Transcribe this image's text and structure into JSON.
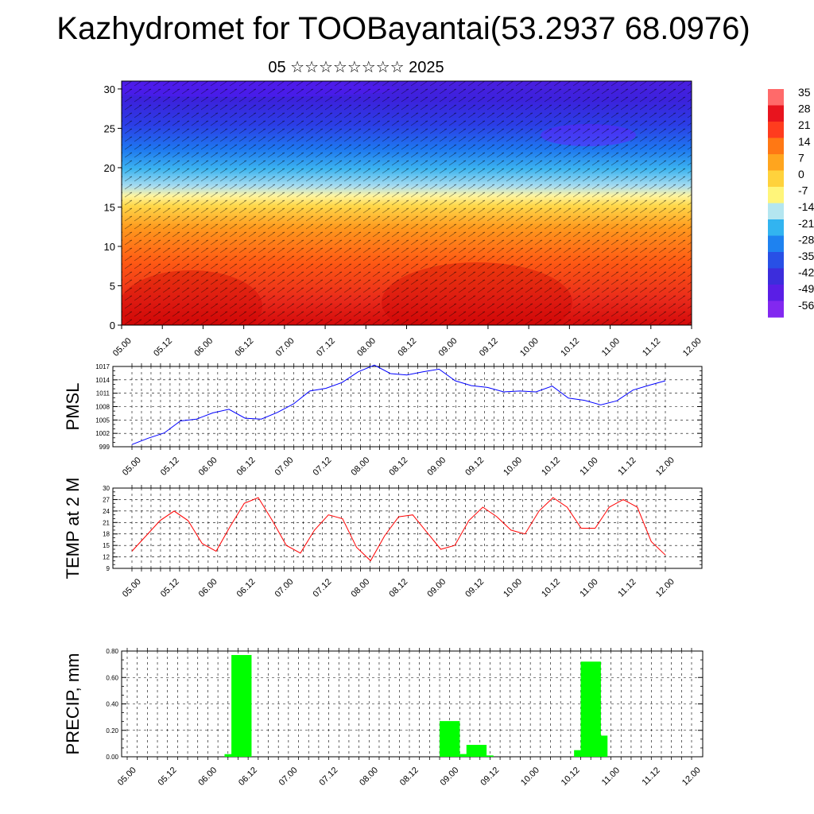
{
  "header": {
    "title": "Kazhydromet for TOOBayantai(53.2937 68.0976)",
    "subtitle": "05 ☆☆☆☆☆☆☆☆ 2025"
  },
  "colors": {
    "pmsl_line": "#0000ff",
    "temp_line": "#ff0000",
    "precip_bar": "#00ff00",
    "grid": "#000000"
  },
  "chart_data": [
    {
      "type": "heatmap",
      "title": "",
      "ylabel": "",
      "ylim": [
        0,
        31
      ],
      "yticks": [
        0,
        5,
        10,
        15,
        20,
        25,
        30
      ],
      "x_ticklabels": [
        "05.00",
        "05.12",
        "06.00",
        "06.12",
        "07.00",
        "07.12",
        "08.00",
        "08.12",
        "09.00",
        "09.12",
        "10.00",
        "10.12",
        "11.00",
        "11.12",
        "12.00"
      ],
      "overlay": "wind vectors",
      "colorbar": {
        "labels": [
          "35",
          "28",
          "21",
          "14",
          "7",
          "0",
          "-7",
          "-14",
          "-21",
          "-28",
          "-35",
          "-42",
          "-49",
          "-56"
        ],
        "colors": [
          "#ff6a6a",
          "#e8141e",
          "#ff3c1e",
          "#ff7814",
          "#ffa51e",
          "#ffd23c",
          "#fff57a",
          "#b4e6f0",
          "#32b4f0",
          "#1e82f0",
          "#2850e6",
          "#3c2ddc",
          "#5a1ee6",
          "#8228f0"
        ]
      }
    },
    {
      "type": "line",
      "ylabel": "PMSL",
      "ylim": [
        999,
        1017
      ],
      "yticks": [
        999,
        1002,
        1005,
        1008,
        1011,
        1014,
        1017
      ],
      "x_ticklabels": [
        "05.00",
        "05.12",
        "06.00",
        "06.12",
        "07.00",
        "07.12",
        "08.00",
        "08.12",
        "09.00",
        "09.12",
        "10.00",
        "10.12",
        "11.00",
        "11.12",
        "12.00"
      ],
      "series": [
        {
          "values": [
            999.5,
            1000.9,
            1002.1,
            1004.8,
            1005.2,
            1006.6,
            1007.4,
            1005.4,
            1005.2,
            1006.7,
            1008.6,
            1011.5,
            1012.1,
            1013.4,
            1015.8,
            1017.3,
            1015.4,
            1015.1,
            1015.8,
            1016.4,
            1013.8,
            1012.7,
            1012.3,
            1011.3,
            1011.5,
            1011.3,
            1012.6,
            1009.9,
            1009.4,
            1008.4,
            1009.3,
            1011.7,
            1012.8,
            1013.8
          ]
        }
      ]
    },
    {
      "type": "line",
      "ylabel": "TEMP at 2 M",
      "ylim": [
        9,
        30
      ],
      "yticks": [
        9,
        12,
        15,
        18,
        21,
        24,
        27,
        30
      ],
      "x_ticklabels": [
        "05.00",
        "05.12",
        "06.00",
        "06.12",
        "07.00",
        "07.12",
        "08.00",
        "08.12",
        "09.00",
        "09.12",
        "10.00",
        "10.12",
        "11.00",
        "11.12",
        "12.00"
      ],
      "series": [
        {
          "values": [
            13.5,
            17.5,
            21.5,
            24.0,
            21.5,
            15.5,
            13.5,
            20.0,
            26.0,
            27.5,
            21.5,
            15.0,
            13.0,
            19.0,
            23.0,
            22.0,
            14.5,
            11.0,
            17.5,
            22.5,
            23.0,
            18.5,
            14.0,
            15.0,
            21.5,
            25.0,
            22.5,
            19.0,
            18.0,
            24.0,
            27.5,
            25.0,
            19.5,
            19.5,
            25.0,
            27.0,
            25.0,
            16.0,
            12.5
          ]
        }
      ]
    },
    {
      "type": "bar",
      "ylabel": "PRECIP, mm",
      "ylim": [
        0,
        0.8
      ],
      "yticks": [
        "0.00",
        "0.20",
        "0.40",
        "0.60",
        "0.80"
      ],
      "x_ticklabels": [
        "05.00",
        "05.12",
        "06.00",
        "06.12",
        "07.00",
        "07.12",
        "08.00",
        "08.12",
        "09.00",
        "09.12",
        "10.00",
        "10.12",
        "11.00",
        "11.12",
        "12.00"
      ],
      "bars": [
        {
          "x": 5.33,
          "value": 0.02
        },
        {
          "x": 5.67,
          "value": 0.77
        },
        {
          "x": 16.0,
          "value": 0.27
        },
        {
          "x": 16.33,
          "value": 0.02
        },
        {
          "x": 17.0,
          "value": 0.02
        },
        {
          "x": 17.33,
          "value": 0.09
        },
        {
          "x": 17.67,
          "value": 0.01
        },
        {
          "x": 22.67,
          "value": 0.05
        },
        {
          "x": 23.0,
          "value": 0.72
        },
        {
          "x": 23.33,
          "value": 0.16
        }
      ]
    }
  ]
}
